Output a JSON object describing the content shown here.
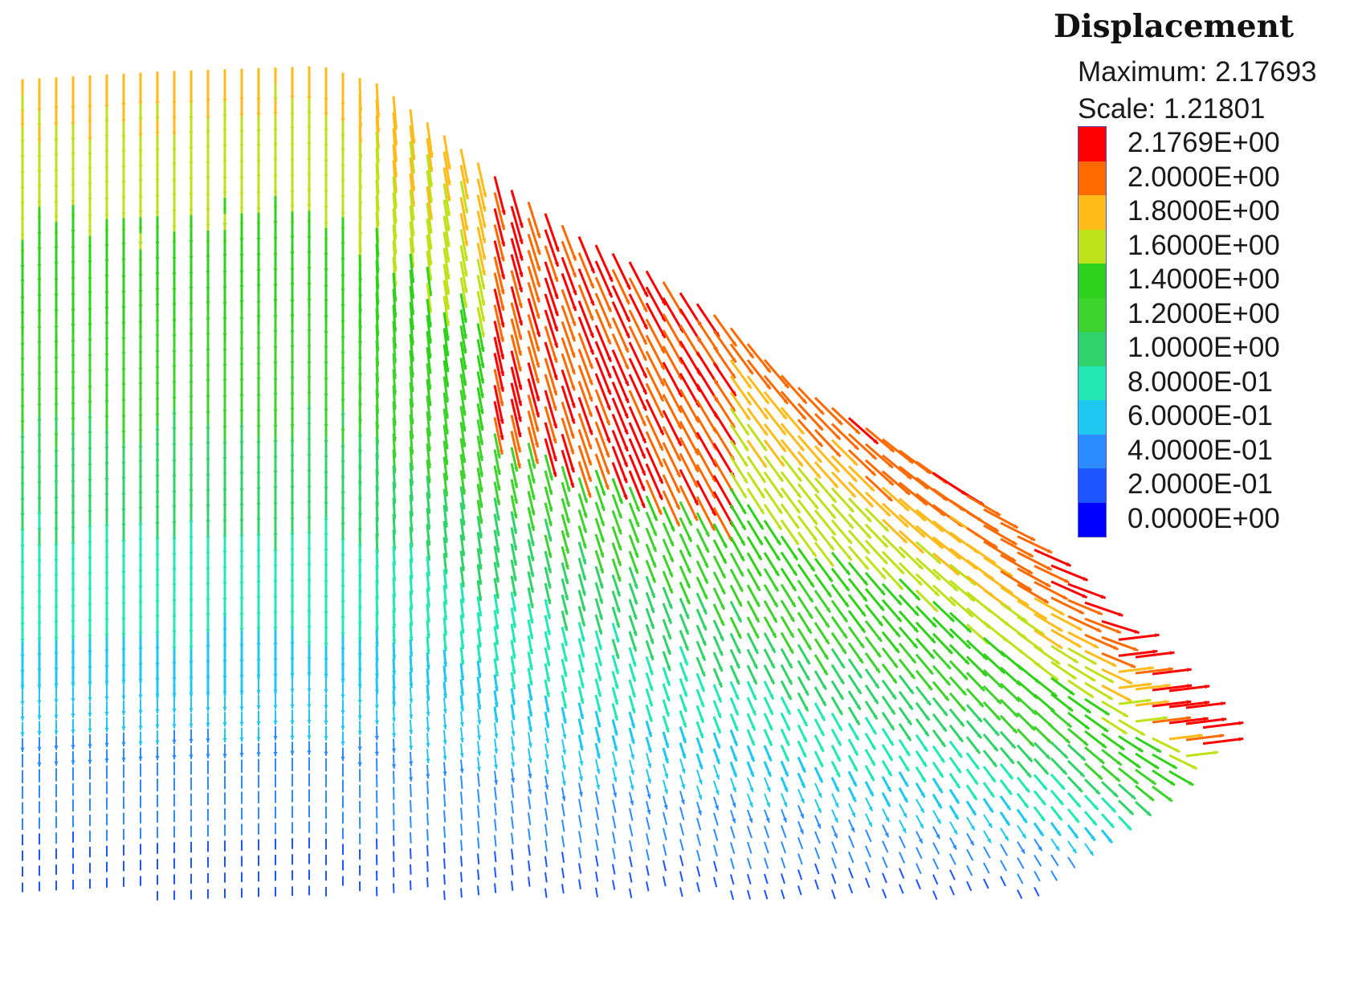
{
  "chart_data": {
    "type": "vector-field",
    "title": "Displacement",
    "maximum_label": "Maximum: 2.17693",
    "scale_label": "Scale: 1.21801",
    "legend_placement": "top-right",
    "colorbar": {
      "tick_labels": [
        "2.1769E+00",
        "2.0000E+00",
        "1.8000E+00",
        "1.6000E+00",
        "1.4000E+00",
        "1.2000E+00",
        "1.0000E+00",
        "8.0000E-01",
        "6.0000E-01",
        "4.0000E-01",
        "2.0000E-01",
        "0.0000E+00"
      ],
      "tick_values": [
        2.1769,
        2.0,
        1.8,
        1.6,
        1.4,
        1.2,
        1.0,
        0.8,
        0.6,
        0.4,
        0.2,
        0.0
      ],
      "band_colors": [
        "#ff0000",
        "#ff6a00",
        "#ffbb1a",
        "#bde21a",
        "#2fd11a",
        "#3dd22c",
        "#30d36a",
        "#22e8b4",
        "#1ec8ee",
        "#2a8cff",
        "#1a55ff",
        "#0000ff"
      ]
    },
    "vector_field": {
      "description_units": "displacement magnitude",
      "max_magnitude": 2.17693,
      "vectors": [
        {
          "region": "crest-left",
          "direction": "down",
          "magnitude": 1.75
        },
        {
          "region": "crest-right",
          "direction": "down-right",
          "magnitude": 1.8
        },
        {
          "region": "upper-slope",
          "direction": "down-right",
          "magnitude": 2.05
        },
        {
          "region": "mid-slope",
          "direction": "right",
          "magnitude": 1.85
        },
        {
          "region": "toe",
          "direction": "right",
          "magnitude": 2.17
        },
        {
          "region": "inner-body",
          "direction": "down",
          "magnitude": 1.1
        },
        {
          "region": "base",
          "direction": "down",
          "magnitude": 0.3
        }
      ]
    }
  }
}
